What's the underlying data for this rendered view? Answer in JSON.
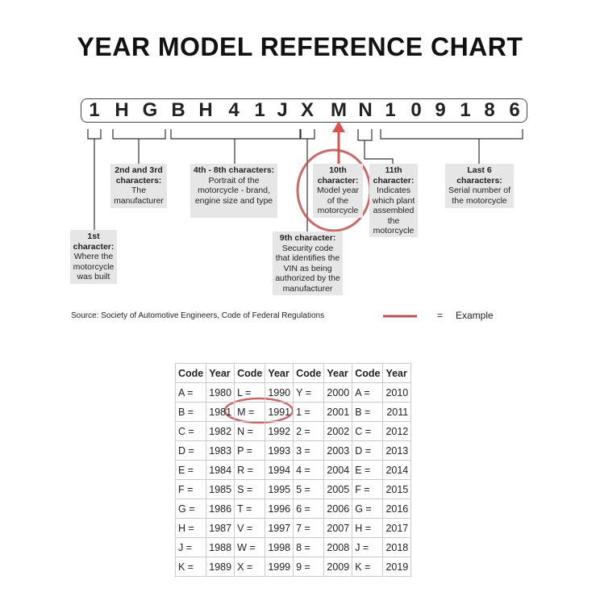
{
  "title": "YEAR MODEL REFERENCE CHART",
  "vin": [
    "1",
    "H",
    "G",
    "B",
    "H",
    "4",
    "1",
    "J",
    "X",
    "M",
    "N",
    "1",
    "0",
    "9",
    "1",
    "8",
    "6"
  ],
  "labels": {
    "first": {
      "head": "1st character:",
      "body": "Where the motorcycle was built"
    },
    "second_third": {
      "head": "2nd and 3rd characters:",
      "body": "The manufacturer"
    },
    "fourth_eighth": {
      "head": "4th - 8th characters:",
      "body": "Portrait of the motorcycle - brand, engine size and type"
    },
    "ninth": {
      "head": "9th character:",
      "body": "Security code that identifies the VIN as being authorized by the manufacturer"
    },
    "tenth": {
      "head": "10th character:",
      "body": "Model year of the motorcycle"
    },
    "eleventh": {
      "head": "11th character:",
      "body": "Indicates which plant assembled the motorcycle"
    },
    "last6": {
      "head": "Last 6 characters:",
      "body": "Serial number of the motorcycle"
    }
  },
  "source": "Source:  Society of Automotive Engineers, Code of Federal Regulations",
  "legend": {
    "equals": "=",
    "label": "Example",
    "color": "#c0504d"
  },
  "table": {
    "headers": [
      "Code",
      "Year",
      "Code",
      "Year",
      "Code",
      "Year",
      "Code",
      "Year"
    ],
    "rows": [
      [
        "A =",
        "1980",
        "L =",
        "1990",
        "Y =",
        "2000",
        "A =",
        "2010"
      ],
      [
        "B =",
        "1981",
        "M =",
        "1991",
        "1 =",
        "2001",
        "B =",
        "2011"
      ],
      [
        "C =",
        "1982",
        "N =",
        "1992",
        "2 =",
        "2002",
        "C =",
        "2012"
      ],
      [
        "D =",
        "1983",
        "P =",
        "1993",
        "3 =",
        "2003",
        "D =",
        "2013"
      ],
      [
        "E =",
        "1984",
        "R =",
        "1994",
        "4 =",
        "2004",
        "E =",
        "2014"
      ],
      [
        "F =",
        "1985",
        "S =",
        "1995",
        "5 =",
        "2005",
        "F =",
        "2015"
      ],
      [
        "G =",
        "1986",
        "T =",
        "1996",
        "6 =",
        "2006",
        "G =",
        "2016"
      ],
      [
        "H =",
        "1987",
        "V =",
        "1997",
        "7 =",
        "2007",
        "H =",
        "2017"
      ],
      [
        "J =",
        "1988",
        "W =",
        "1998",
        "8 =",
        "2008",
        "J =",
        "2018"
      ],
      [
        "K =",
        "1989",
        "X =",
        "1999",
        "9 =",
        "2009",
        "K =",
        "2019"
      ]
    ]
  }
}
